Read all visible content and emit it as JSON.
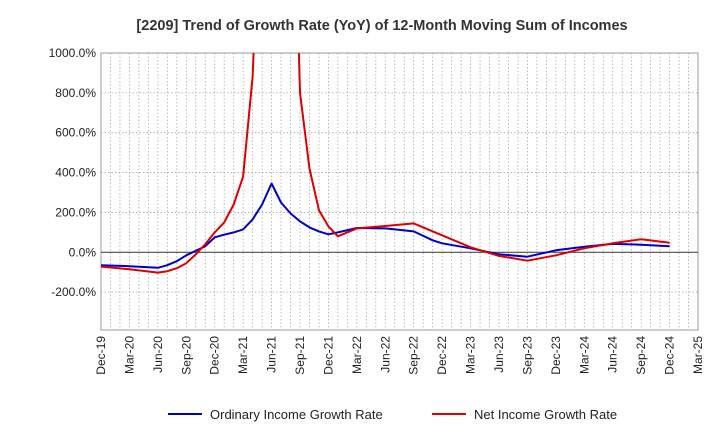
{
  "chart_data": {
    "type": "line",
    "title": "[2209]  Trend of Growth Rate (YoY) of 12-Month Moving Sum of Incomes",
    "xlabel": "",
    "ylabel": "",
    "x_tick_labels": [
      "Dec-19",
      "Mar-20",
      "Jun-20",
      "Sep-20",
      "Dec-20",
      "Mar-21",
      "Jun-21",
      "Sep-21",
      "Dec-21",
      "Mar-22",
      "Jun-22",
      "Sep-22",
      "Dec-22",
      "Mar-23",
      "Jun-23",
      "Sep-23",
      "Dec-23",
      "Mar-24",
      "Jun-24",
      "Sep-24",
      "Dec-24",
      "Mar-25"
    ],
    "y_tick_values": [
      1000,
      800,
      600,
      400,
      200,
      0,
      -200
    ],
    "y_tick_labels": [
      "1000.0%",
      "800.0%",
      "600.0%",
      "400.0%",
      "200.0%",
      "0.0%",
      "-200.0%"
    ],
    "ylim": [
      -390,
      1000
    ],
    "grid": true,
    "legend_position": "bottom",
    "series": [
      {
        "name": "Ordinary Income Growth Rate",
        "color": "#0000cc",
        "points": [
          [
            "Dec-19",
            -65
          ],
          [
            "Mar-20",
            -70
          ],
          [
            "Jun-20",
            -78
          ],
          [
            "Jul-20",
            -65
          ],
          [
            "Aug-20",
            -45
          ],
          [
            "Sep-20",
            -15
          ],
          [
            "Nov-20",
            30
          ],
          [
            "Dec-20",
            75
          ],
          [
            "Jan-21",
            88
          ],
          [
            "Feb-21",
            100
          ],
          [
            "Mar-21",
            115
          ],
          [
            "Apr-21",
            165
          ],
          [
            "May-21",
            240
          ],
          [
            "Jun-21",
            345
          ],
          [
            "Jul-21",
            250
          ],
          [
            "Aug-21",
            195
          ],
          [
            "Sep-21",
            155
          ],
          [
            "Oct-21",
            125
          ],
          [
            "Nov-21",
            105
          ],
          [
            "Dec-21",
            90
          ],
          [
            "Jan-22",
            100
          ],
          [
            "Mar-22",
            122
          ],
          [
            "Jun-22",
            120
          ],
          [
            "Sep-22",
            105
          ],
          [
            "Nov-22",
            60
          ],
          [
            "Dec-22",
            45
          ],
          [
            "Mar-23",
            20
          ],
          [
            "Jun-23",
            -10
          ],
          [
            "Sep-23",
            -22
          ],
          [
            "Dec-23",
            10
          ],
          [
            "Mar-24",
            28
          ],
          [
            "Jun-24",
            42
          ],
          [
            "Sep-24",
            38
          ],
          [
            "Dec-24",
            30
          ]
        ]
      },
      {
        "name": "Net Income Growth Rate",
        "color": "#dd0000",
        "points": [
          [
            "Dec-19",
            -72
          ],
          [
            "Mar-20",
            -85
          ],
          [
            "Jun-20",
            -102
          ],
          [
            "Jul-20",
            -95
          ],
          [
            "Aug-20",
            -80
          ],
          [
            "Sep-20",
            -55
          ],
          [
            "Oct-20",
            -10
          ],
          [
            "Nov-20",
            40
          ],
          [
            "Dec-20",
            100
          ],
          [
            "Jan-21",
            150
          ],
          [
            "Feb-21",
            240
          ],
          [
            "Mar-21",
            380
          ],
          [
            "Apr-21",
            880
          ],
          [
            "Apr-21b",
            1050
          ],
          [
            "Sep-21a",
            1050
          ],
          [
            "Sep-21",
            800
          ],
          [
            "Oct-21",
            420
          ],
          [
            "Nov-21",
            210
          ],
          [
            "Dec-21",
            130
          ],
          [
            "Jan-22",
            80
          ],
          [
            "Mar-22",
            120
          ],
          [
            "Jun-22",
            132
          ],
          [
            "Sep-22",
            145
          ],
          [
            "Dec-22",
            85
          ],
          [
            "Mar-23",
            25
          ],
          [
            "Jun-23",
            -18
          ],
          [
            "Sep-23",
            -42
          ],
          [
            "Dec-23",
            -15
          ],
          [
            "Mar-24",
            20
          ],
          [
            "Jun-24",
            45
          ],
          [
            "Sep-24",
            65
          ],
          [
            "Dec-24",
            48
          ]
        ]
      }
    ]
  }
}
